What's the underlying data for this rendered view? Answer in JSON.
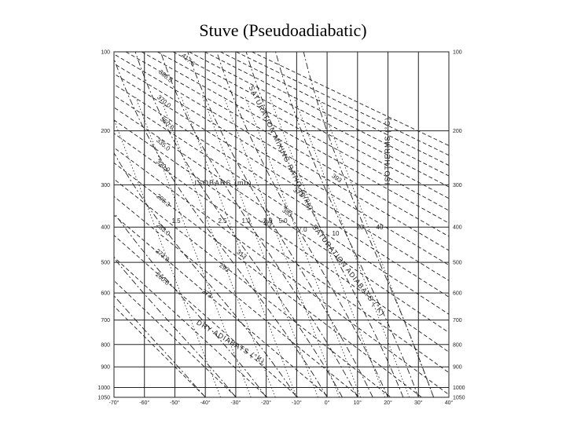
{
  "title": "Stuve (Pseudoadiabatic)",
  "colors": {
    "ink": "#222222",
    "grid": "#1a1a1a",
    "paper": "#ffffff"
  },
  "chart_data": {
    "type": "diagram",
    "title": "Stuve (Pseudoadiabatic)",
    "pressure_ticks": [
      "100",
      "200",
      "300",
      "400",
      "500",
      "600",
      "700",
      "800",
      "900",
      "1000",
      "1050"
    ],
    "pressure_values": [
      100,
      200,
      300,
      400,
      500,
      600,
      700,
      800,
      900,
      1000,
      1050
    ],
    "temperature_ticks": [
      "-70°",
      "-60°",
      "-50°",
      "-40°",
      "-30°",
      "-20°",
      "-10°",
      "0°",
      "10°",
      "20°",
      "30°",
      "40°"
    ],
    "temperature_values": [
      -70,
      -60,
      -50,
      -40,
      -30,
      -20,
      -10,
      0,
      10,
      20,
      30,
      40
    ],
    "dry_adiabat_labels": [
      "417.6",
      "386.0",
      "370.0",
      "350.0",
      "335.0",
      "320.0",
      "296.3",
      "283.0",
      "273.0",
      "260.0"
    ],
    "saturation_adiabat_labels": [
      "393",
      "373",
      "353",
      "333",
      "313",
      "293",
      "273"
    ],
    "mixing_ratio_labels": [
      "1.5",
      "2.5",
      "1.0",
      "2.0",
      "5.0",
      "7.0",
      "10",
      "20",
      "40"
    ],
    "annotations": {
      "isobars": "ISOBARS (mb)",
      "isotherms": "ISOTHERMS (°C)",
      "saturation_mixing_ratio": "SATURATION MIXING RATIO (g/kg)",
      "saturation_adiabats": "SATURATION ADIABATS (°K)",
      "dry_adiabats": "DRY ADIABATS (°K)"
    }
  }
}
